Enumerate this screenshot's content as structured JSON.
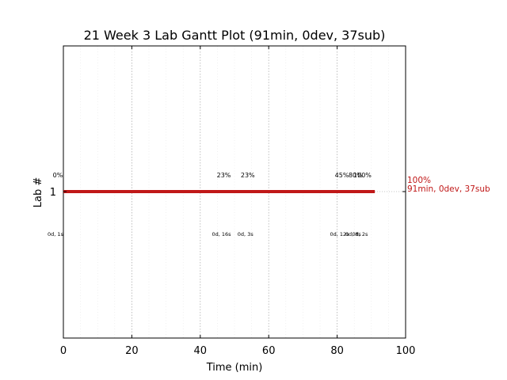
{
  "chart_data": {
    "type": "gantt",
    "title": "21 Week 3 Lab Gantt Plot (91min, 0dev, 37sub)",
    "xlabel": "Time (min)",
    "ylabel": "Lab #",
    "xlim": [
      0,
      100
    ],
    "x_ticks": [
      "0",
      "20",
      "40",
      "60",
      "80",
      "100"
    ],
    "minor_grid_step": 5,
    "major_grid_step": 20,
    "bar_color": "#c01818",
    "rows": [
      {
        "label": "1",
        "start": 0,
        "end": 91,
        "end_label_pct": "100%",
        "end_label_stats": "91min, 0dev, 37sub",
        "annotations": [
          {
            "x": 0,
            "percent": "0%",
            "detail": "0d, 1s"
          },
          {
            "x": 48.5,
            "percent": "23%",
            "detail": "0d, 16s"
          },
          {
            "x": 55.5,
            "percent": "23%",
            "detail": "0d, 3s"
          },
          {
            "x": 83,
            "percent": "45%",
            "detail": "0d, 12s"
          },
          {
            "x": 87,
            "percent": "80%",
            "detail": "0d, 8s"
          },
          {
            "x": 89,
            "percent": "100%",
            "detail": "0d, 2s"
          }
        ]
      }
    ]
  }
}
